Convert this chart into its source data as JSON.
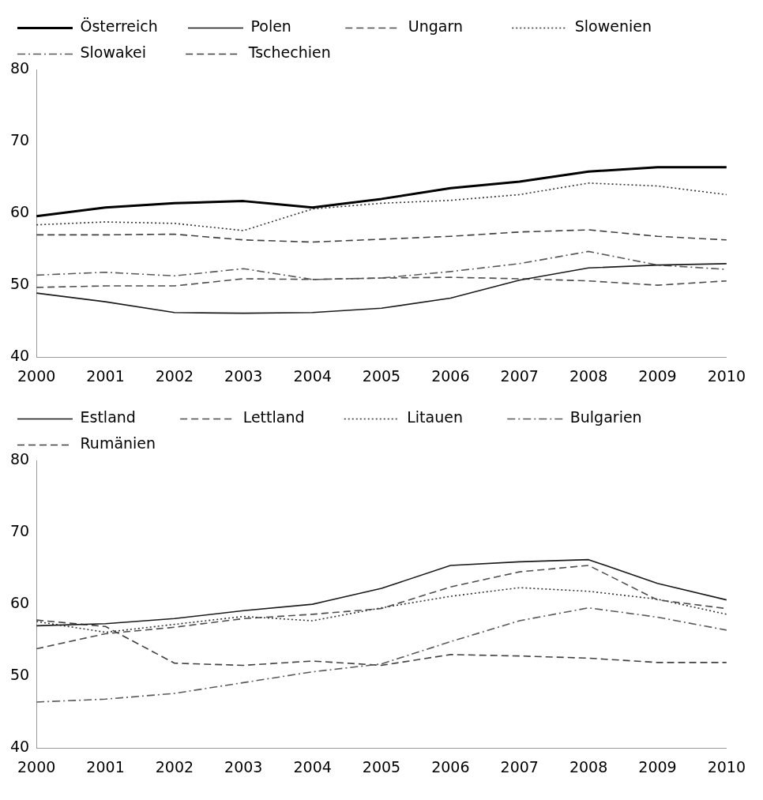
{
  "chart_data": [
    {
      "type": "line",
      "categories": [
        "2000",
        "2001",
        "2002",
        "2003",
        "2004",
        "2005",
        "2006",
        "2007",
        "2008",
        "2009",
        "2010"
      ],
      "ylim": [
        40,
        80
      ],
      "yticks": [
        40,
        50,
        60,
        70,
        80
      ],
      "grid": false,
      "legend": "top",
      "series": [
        {
          "name": "Österreich",
          "color": "#000000",
          "line_style": "solid",
          "values": [
            59.6,
            60.8,
            61.4,
            61.7,
            60.8,
            62.0,
            63.5,
            64.4,
            65.8,
            66.4,
            66.4
          ]
        },
        {
          "name": "Polen",
          "color": "#1a1a1a",
          "line_style": "solid",
          "values": [
            48.9,
            47.7,
            46.2,
            46.1,
            46.2,
            46.8,
            48.2,
            50.7,
            52.4,
            52.8,
            53.0
          ]
        },
        {
          "name": "Ungarn",
          "color": "#4d4d4d",
          "line_style": "dashed",
          "values": [
            49.7,
            49.9,
            49.9,
            50.9,
            50.8,
            51.0,
            51.1,
            50.9,
            50.6,
            50.0,
            50.6
          ]
        },
        {
          "name": "Slowenien",
          "color": "#333333",
          "line_style": "dotted",
          "values": [
            58.4,
            58.8,
            58.6,
            57.6,
            60.6,
            61.4,
            61.8,
            62.6,
            64.2,
            63.8,
            62.6
          ]
        },
        {
          "name": "Slowakei",
          "color": "#595959",
          "line_style": "dashdot",
          "values": [
            51.4,
            51.8,
            51.3,
            52.3,
            50.8,
            51.0,
            51.9,
            53.0,
            54.7,
            52.8,
            52.2
          ]
        },
        {
          "name": "Tschechien",
          "color": "#404040",
          "line_style": "dashed",
          "values": [
            57.0,
            57.0,
            57.1,
            56.3,
            56.0,
            56.4,
            56.8,
            57.4,
            57.7,
            56.8,
            56.3
          ]
        }
      ]
    },
    {
      "type": "line",
      "categories": [
        "2000",
        "2001",
        "2002",
        "2003",
        "2004",
        "2005",
        "2006",
        "2007",
        "2008",
        "2009",
        "2010"
      ],
      "ylim": [
        40,
        80
      ],
      "yticks": [
        40,
        50,
        60,
        70,
        80
      ],
      "grid": false,
      "legend": "top",
      "series": [
        {
          "name": "Estland",
          "color": "#1a1a1a",
          "line_style": "solid",
          "values": [
            57.0,
            57.3,
            58.0,
            59.1,
            60.0,
            62.2,
            65.4,
            65.9,
            66.2,
            62.9,
            60.6
          ]
        },
        {
          "name": "Lettland",
          "color": "#4d4d4d",
          "line_style": "dashed",
          "values": [
            53.8,
            55.9,
            56.8,
            58.0,
            58.6,
            59.4,
            62.4,
            64.5,
            65.4,
            60.6,
            59.4
          ]
        },
        {
          "name": "Litauen",
          "color": "#333333",
          "line_style": "dotted",
          "values": [
            57.6,
            56.1,
            57.2,
            58.3,
            57.7,
            59.5,
            61.1,
            62.3,
            61.8,
            60.7,
            58.6
          ]
        },
        {
          "name": "Bulgarien",
          "color": "#595959",
          "line_style": "dashdot",
          "values": [
            46.4,
            46.8,
            47.6,
            49.1,
            50.6,
            51.7,
            54.8,
            57.7,
            59.5,
            58.2,
            56.4
          ]
        },
        {
          "name": "Rumänien",
          "color": "#404040",
          "line_style": "dashed",
          "values": [
            57.8,
            56.9,
            51.8,
            51.5,
            52.1,
            51.5,
            53.0,
            52.8,
            52.5,
            51.9,
            51.9
          ]
        }
      ]
    }
  ]
}
